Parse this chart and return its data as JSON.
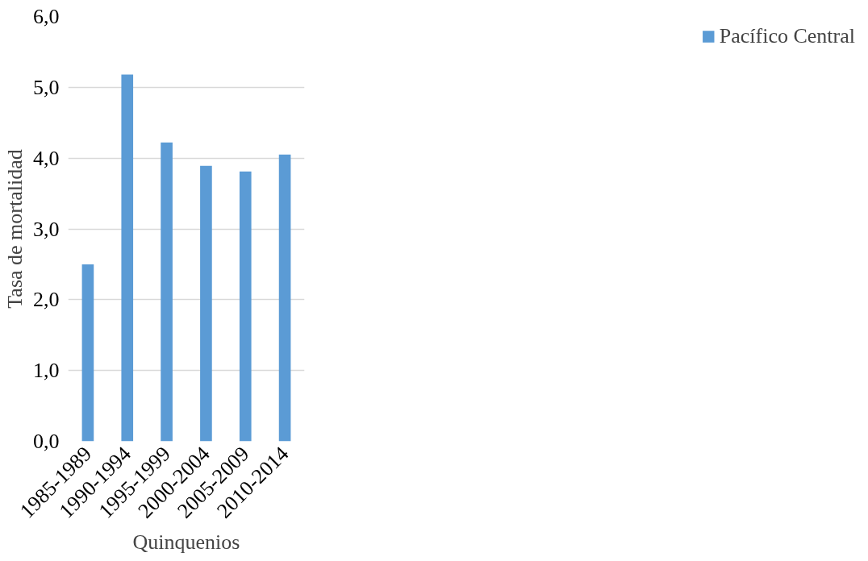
{
  "chart_data": {
    "type": "bar",
    "xlabel": "Quinquenios",
    "ylabel": "Tasa de mortalidad",
    "categories": [
      "1985-1989",
      "1990-1994",
      "1995-1999",
      "2000-2004",
      "2005-2009",
      "2010-2014"
    ],
    "series": [
      {
        "name": "Pacífico Central",
        "color": "#5b9bd5",
        "values": [
          2.5,
          5.18,
          4.22,
          3.89,
          3.81,
          4.05
        ]
      }
    ],
    "ylim": [
      0,
      6
    ],
    "yticks": [
      {
        "value": 0,
        "label": "0,0"
      },
      {
        "value": 1,
        "label": "1,0"
      },
      {
        "value": 2,
        "label": "2,0"
      },
      {
        "value": 3,
        "label": "3,0"
      },
      {
        "value": 4,
        "label": "4,0"
      },
      {
        "value": 5,
        "label": "5,0"
      },
      {
        "value": 6,
        "label": "6,0"
      }
    ],
    "grid": "y",
    "legend": "right"
  }
}
